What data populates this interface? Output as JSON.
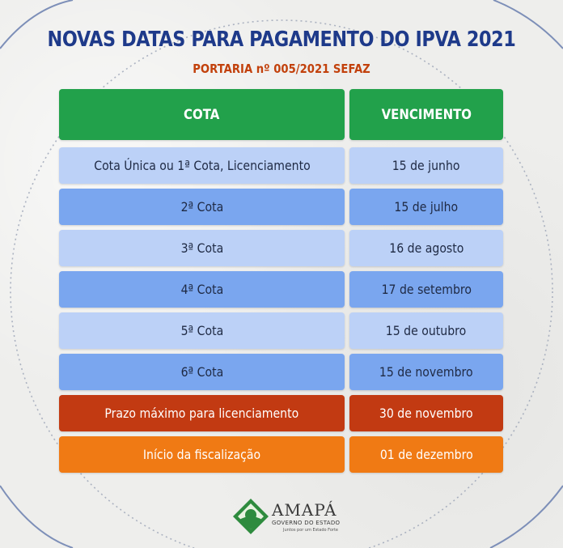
{
  "header": {
    "title": "NOVAS DATAS PARA PAGAMENTO DO IPVA 2021",
    "subtitle": "PORTARIA nº 005/2021 SEFAZ"
  },
  "table": {
    "columns": [
      "COTA",
      "VENCIMENTO"
    ],
    "rows": [
      {
        "cota": "Cota Única ou 1ª Cota, Licenciamento",
        "vencimento": "15 de junho"
      },
      {
        "cota": "2ª Cota",
        "vencimento": "15 de julho"
      },
      {
        "cota": "3ª Cota",
        "vencimento": "16 de agosto"
      },
      {
        "cota": "4ª Cota",
        "vencimento": "17 de setembro"
      },
      {
        "cota": "5ª Cota",
        "vencimento": "15 de outubro"
      },
      {
        "cota": "6ª Cota",
        "vencimento": "15 de novembro"
      },
      {
        "cota": "Prazo máximo para licenciamento",
        "vencimento": "30 de novembro"
      },
      {
        "cota": "Início da fiscalização",
        "vencimento": "01 de dezembro"
      }
    ]
  },
  "logo": {
    "name": "AMAPÁ",
    "subtitle": "GOVERNO DO ESTADO",
    "tagline": "Juntos por um Estado Forte"
  },
  "colors": {
    "title": "#1e3a8a",
    "subtitle": "#c2410c",
    "header_green": "#22a14b",
    "row_light": "#bcd1f7",
    "row_mid": "#7aa6ef",
    "row_red": "#c23a12",
    "row_orange": "#f07a14"
  }
}
